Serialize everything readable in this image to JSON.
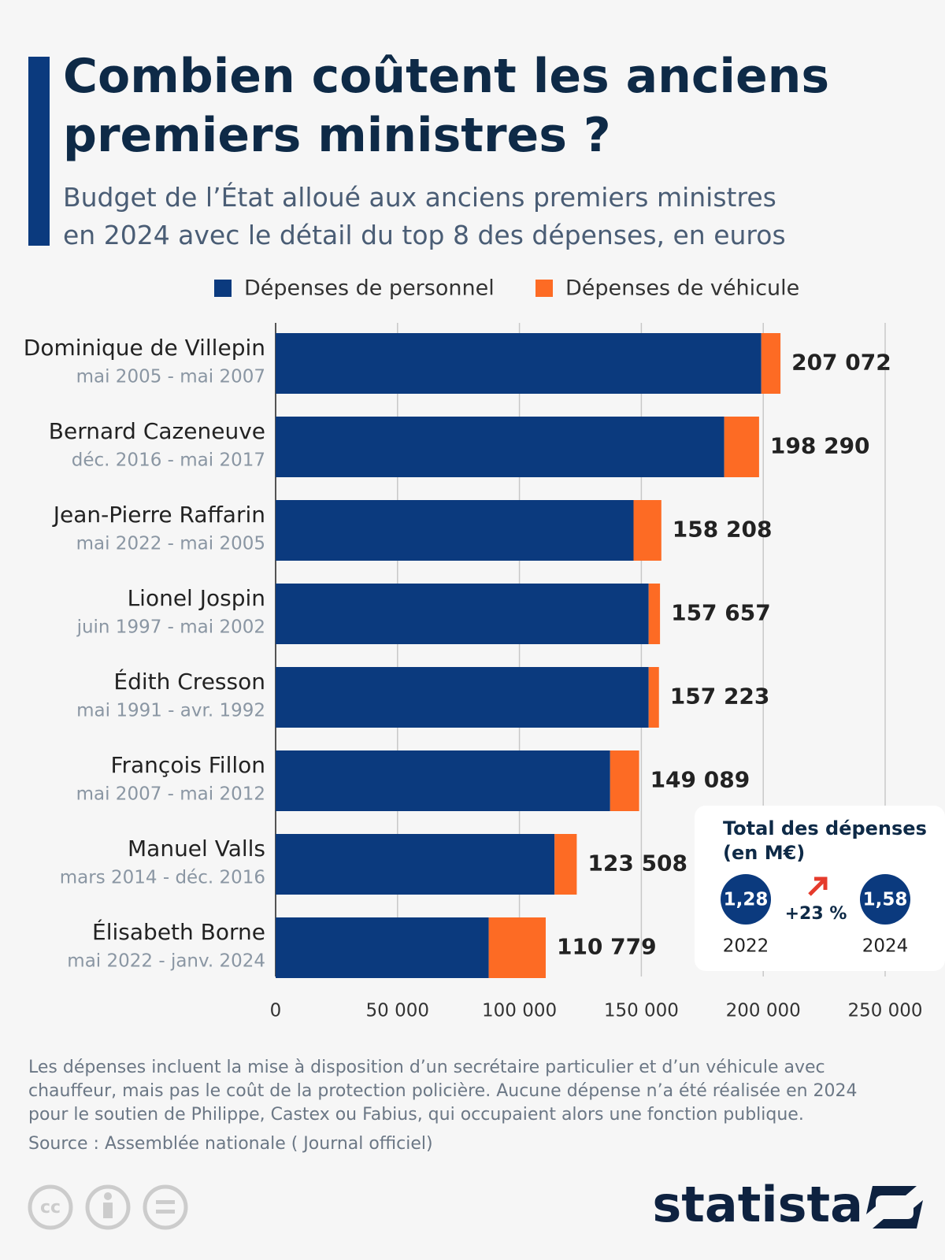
{
  "chart_data": {
    "type": "stacked-bar-horizontal",
    "title": "Combien coûtent les anciens premiers ministres ?",
    "subtitle": "Budget de l’État alloué aux anciens premiers ministres en 2024 avec le détail du top 8 des dépenses, en euros",
    "categories": [
      "Dominique de Villepin",
      "Bernard Cazeneuve",
      "Jean-Pierre Raffarin",
      "Lionel Jospin",
      "Édith Cresson",
      "François Fillon",
      "Manuel Valls",
      "Élisabeth Borne"
    ],
    "periods": [
      "mai 2005 - mai 2007",
      "déc. 2016 - mai  2017",
      "mai 2022 - mai 2005",
      "juin 1997 - mai 2002",
      "mai 1991 - avr. 1992",
      "mai 2007 - mai 2012",
      "mars 2014 - déc. 2016",
      "mai 2022 - janv. 2024"
    ],
    "series": [
      {
        "name": "Dépenses de personnel",
        "color": "#0b3a7e",
        "values": [
          199200,
          184000,
          146800,
          153000,
          153000,
          137200,
          114400,
          87400
        ]
      },
      {
        "name": "Dépenses de véhicule",
        "color": "#fd6b24",
        "values": [
          7872,
          14290,
          11408,
          4657,
          4223,
          11889,
          9108,
          23379
        ]
      }
    ],
    "totals": [
      207072,
      198290,
      158208,
      157657,
      157223,
      149089,
      123508,
      110779
    ],
    "total_labels": [
      "207 072",
      "198 290",
      "158 208",
      "157 657",
      "157 223",
      "149 089",
      "123 508",
      "110 779"
    ],
    "xlim": [
      0,
      250000
    ],
    "xticks": [
      0,
      {
        "value": 50000,
        "label": "50 000"
      },
      {
        "value": 100000,
        "label": "100 000"
      },
      {
        "value": 150000,
        "label": "150 000"
      },
      {
        "value": 200000,
        "label": "200 000"
      },
      {
        "value": 250000,
        "label": "250 000"
      }
    ],
    "grid": true,
    "summary": {
      "title": "Total des dépenses (en M€)",
      "from_value": "1,28",
      "from_year": "2022",
      "change": "+23 %",
      "to_value": "1,58",
      "to_year": "2024"
    },
    "notes": [
      "Les dépenses incluent la mise à disposition d’un secrétaire particulier et d’un véhicule avec",
      "chauffeur, mais pas le coût de la protection policière. Aucune dépense n’a été réalisée en 2024",
      "pour le soutien de Philippe, Castex ou Fabius, qui occupaient alors une fonction publique."
    ],
    "source": "Source : Assemblée nationale ( Journal officiel)",
    "brand": "statista"
  }
}
